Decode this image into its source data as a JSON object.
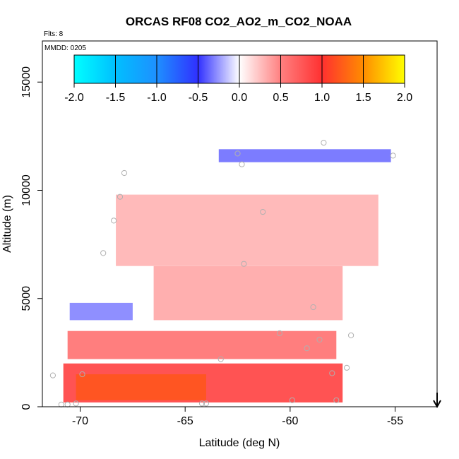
{
  "chart_data": {
    "type": "heatmap",
    "title": "ORCAS RF08 CO2_AO2_m_CO2_NOAA",
    "subtitle": "Flts: 8",
    "annotation": "MMDD: 0205",
    "xlabel": "Latitude (deg N)",
    "ylabel": "Altitude (m)",
    "xlim": [
      -71.8,
      -53
    ],
    "ylim": [
      0,
      16900
    ],
    "xticks": [
      -70,
      -65,
      -60,
      -55
    ],
    "yticks": [
      0,
      5000,
      10000,
      15000
    ],
    "colorbar": {
      "range": [
        -2.0,
        2.0
      ],
      "ticks": [
        "-2.0",
        "-1.5",
        "-1.0",
        "-0.5",
        "0.0",
        "0.5",
        "1.0",
        "1.5",
        "2.0"
      ],
      "colors": [
        "#00FFFF",
        "#00BFFF",
        "#1E90FF",
        "#3030FF",
        "#FFFFFF",
        "#FF8080",
        "#FF3030",
        "#FF8C00",
        "#FFFF00"
      ]
    },
    "regions": [
      {
        "name": "upper-blue-band",
        "lat": [
          -63.4,
          -55.2
        ],
        "alt": [
          11300,
          11900
        ],
        "value": -0.35
      },
      {
        "name": "upper-red-layer",
        "lat": [
          -68.3,
          -55.8
        ],
        "alt": [
          6500,
          9800
        ],
        "value": 0.3
      },
      {
        "name": "mid-red-wedge",
        "lat": [
          -66.5,
          -57.5
        ],
        "alt": [
          4000,
          6500
        ],
        "value": 0.35
      },
      {
        "name": "mid-blue-patch",
        "lat": [
          -70.5,
          -67.5
        ],
        "alt": [
          4000,
          4800
        ],
        "value": -0.3
      },
      {
        "name": "lower-red-band",
        "lat": [
          -70.6,
          -57.8
        ],
        "alt": [
          2200,
          3500
        ],
        "value": 0.6
      },
      {
        "name": "boundary-layer-red",
        "lat": [
          -70.8,
          -57.5
        ],
        "alt": [
          200,
          2000
        ],
        "value": 0.9
      },
      {
        "name": "boundary-layer-orange",
        "lat": [
          -70.2,
          -64.0
        ],
        "alt": [
          300,
          1500
        ],
        "value": 1.2
      }
    ],
    "flight_points": [
      [
        -71.3,
        1450
      ],
      [
        -70.9,
        100
      ],
      [
        -70.6,
        100
      ],
      [
        -69.9,
        1500
      ],
      [
        -70.2,
        150
      ],
      [
        -68.9,
        7100
      ],
      [
        -68.4,
        8600
      ],
      [
        -68.1,
        9700
      ],
      [
        -67.9,
        10800
      ],
      [
        -64.2,
        150
      ],
      [
        -64.0,
        150
      ],
      [
        -63.3,
        2200
      ],
      [
        -62.5,
        11700
      ],
      [
        -62.3,
        11200
      ],
      [
        -62.2,
        6600
      ],
      [
        -61.3,
        9000
      ],
      [
        -60.5,
        3400
      ],
      [
        -59.9,
        300
      ],
      [
        -59.2,
        2700
      ],
      [
        -58.9,
        4600
      ],
      [
        -58.6,
        3100
      ],
      [
        -58.4,
        12200
      ],
      [
        -58.0,
        1550
      ],
      [
        -57.8,
        300
      ],
      [
        -57.3,
        1800
      ],
      [
        -57.1,
        3300
      ],
      [
        -55.1,
        11600
      ]
    ],
    "arrow_lat": -53.0
  }
}
